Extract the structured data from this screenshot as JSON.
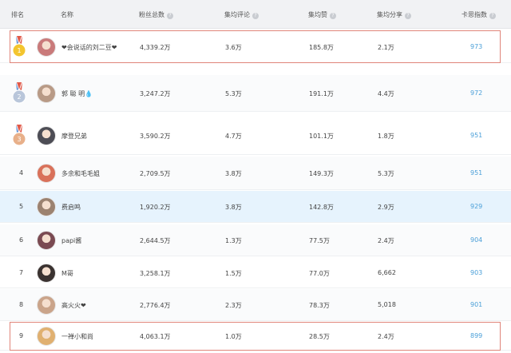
{
  "header": {
    "rank": "排名",
    "name": "名称",
    "fans": "粉丝总数",
    "comments": "集均评论",
    "likes": "集均赞",
    "shares": "集均分享",
    "index": "卡思指数",
    "help_glyph": "?"
  },
  "rows": [
    {
      "rank": "1",
      "name": "❤会说话的刘二豆❤",
      "fans": "4,339.2万",
      "comments": "3.6万",
      "likes": "185.8万",
      "shares": "2.1万",
      "index": "973",
      "medal": "gold",
      "avatar_color": "#c97a7a"
    },
    {
      "rank": "2",
      "name": "郭 聪 明💧",
      "fans": "3,247.2万",
      "comments": "5.3万",
      "likes": "191.1万",
      "shares": "4.4万",
      "index": "972",
      "medal": "silver",
      "avatar_color": "#b89a86"
    },
    {
      "rank": "3",
      "name": "摩登兄弟",
      "fans": "3,590.2万",
      "comments": "4.7万",
      "likes": "101.1万",
      "shares": "1.8万",
      "index": "951",
      "medal": "bronze",
      "avatar_color": "#4d4d55"
    },
    {
      "rank": "4",
      "name": "多余和毛毛姐",
      "fans": "2,709.5万",
      "comments": "3.8万",
      "likes": "149.3万",
      "shares": "5.3万",
      "index": "951",
      "avatar_color": "#d9715a"
    },
    {
      "rank": "5",
      "name": "费启鸣",
      "fans": "1,920.2万",
      "comments": "3.8万",
      "likes": "142.8万",
      "shares": "2.9万",
      "index": "929",
      "avatar_color": "#9b8270"
    },
    {
      "rank": "6",
      "name": "papi酱",
      "fans": "2,644.5万",
      "comments": "1.3万",
      "likes": "77.5万",
      "shares": "2.4万",
      "index": "904",
      "avatar_color": "#7a4a52"
    },
    {
      "rank": "7",
      "name": "M哥",
      "fans": "3,258.1万",
      "comments": "1.5万",
      "likes": "77.0万",
      "shares": "6,662",
      "index": "903",
      "avatar_color": "#3a3230"
    },
    {
      "rank": "8",
      "name": "高火火❤",
      "fans": "2,776.4万",
      "comments": "2.3万",
      "likes": "78.3万",
      "shares": "5,018",
      "index": "901",
      "avatar_color": "#caa48a"
    },
    {
      "rank": "9",
      "name": "一禅小和尚",
      "fans": "4,063.1万",
      "comments": "1.0万",
      "likes": "28.5万",
      "shares": "2.4万",
      "index": "899",
      "avatar_color": "#e0b070"
    }
  ],
  "colors": {
    "gold": "#f3c52f",
    "silver": "#b9c6da",
    "bronze": "#e8b08a",
    "ribbon_red": "#e15a4a",
    "ribbon_blue": "#5b8fd6",
    "score": "#4a9fd8",
    "highlight_border": "#e0857a",
    "highlight_row": "#e6f3fd"
  }
}
